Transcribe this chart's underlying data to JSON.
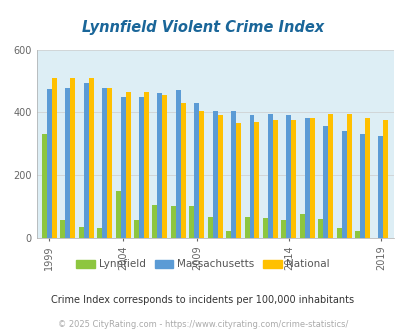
{
  "title": "Lynnfield Violent Crime Index",
  "title_color": "#1a6699",
  "background_color": "#ddeef5",
  "outer_background": "#ffffff",
  "years": [
    1999,
    2000,
    2002,
    2003,
    2004,
    2006,
    2007,
    2008,
    2009,
    2010,
    2011,
    2012,
    2013,
    2014,
    2015,
    2016,
    2017,
    2018,
    2019
  ],
  "lynnfield": [
    330,
    55,
    35,
    30,
    148,
    55,
    105,
    100,
    100,
    65,
    20,
    65,
    62,
    55,
    75,
    58,
    30,
    20,
    0
  ],
  "massachusetts": [
    475,
    478,
    492,
    477,
    450,
    450,
    460,
    470,
    430,
    405,
    405,
    392,
    393,
    390,
    380,
    355,
    340,
    330,
    325
  ],
  "national": [
    510,
    510,
    510,
    477,
    465,
    465,
    455,
    430,
    405,
    390,
    365,
    370,
    375,
    375,
    380,
    395,
    395,
    380,
    375
  ],
  "lynnfield_color": "#8dc63f",
  "massachusetts_color": "#5b9bd5",
  "national_color": "#ffc000",
  "ylim": [
    0,
    600
  ],
  "yticks": [
    0,
    200,
    400,
    600
  ],
  "xtick_labels": [
    "1999",
    "2004",
    "2009",
    "2014",
    "2019"
  ],
  "subtitle": "Crime Index corresponds to incidents per 100,000 inhabitants",
  "footer": "© 2025 CityRating.com - https://www.cityrating.com/crime-statistics/",
  "subtitle_color": "#333333",
  "footer_color": "#aaaaaa",
  "grid_color": "#cccccc",
  "bar_width": 0.27
}
